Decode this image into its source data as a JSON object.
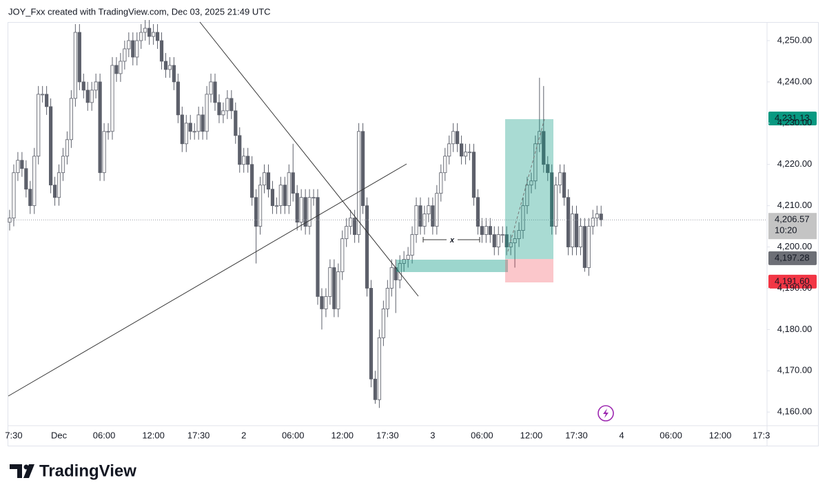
{
  "header": "JOY_Fxx created with TradingView.com, Dec 03, 2025 21:49 UTC",
  "footer": {
    "logo_text": "TradingView"
  },
  "chart_data": {
    "type": "candlestick",
    "up_color": "#f4f4f4",
    "down_color": "#5d606b",
    "wick_color": "#5d606b",
    "categories": [
      null,
      "7:30",
      null,
      null,
      null,
      null,
      null,
      null,
      null,
      null,
      null,
      null,
      "Dec",
      null,
      null,
      null,
      null,
      null,
      null,
      null,
      null,
      null,
      null,
      "06:00",
      null,
      null,
      null,
      null,
      null,
      null,
      null,
      null,
      null,
      null,
      null,
      "12:00",
      null,
      null,
      null,
      null,
      null,
      null,
      null,
      null,
      null,
      null,
      "17:30",
      null,
      null,
      null,
      null,
      null,
      null,
      null,
      null,
      null,
      null,
      "2",
      null,
      null,
      null,
      null,
      null,
      null,
      null,
      null,
      null,
      null,
      null,
      "06:00",
      null,
      null,
      null,
      null,
      null,
      null,
      null,
      null,
      null,
      null,
      null,
      "12:00",
      null,
      null,
      null,
      null,
      null,
      null,
      null,
      null,
      null,
      null,
      "17:30",
      null,
      null,
      null,
      null,
      null,
      null,
      null,
      null,
      null,
      null,
      "3",
      null,
      null,
      null,
      null,
      null,
      null,
      null,
      null,
      null,
      null,
      null,
      "06:00",
      null,
      null,
      null,
      null,
      null,
      null,
      null,
      null,
      null,
      null,
      null,
      "12:00",
      null,
      null,
      null,
      null,
      null,
      null,
      null,
      null,
      null,
      null,
      "17:30",
      null,
      null,
      null,
      null,
      null,
      null,
      null,
      null,
      null,
      null,
      "4",
      null,
      null,
      null,
      null,
      null,
      null,
      null,
      null,
      null,
      null,
      null,
      "06:00",
      null,
      null,
      null,
      null,
      null,
      null,
      null,
      null,
      null,
      null,
      null,
      "12:00",
      null,
      null,
      null,
      null,
      null,
      null,
      null,
      null,
      null,
      "17:3"
    ],
    "open": [
      4206,
      4207,
      4218,
      4221,
      4219,
      4214,
      4210,
      4222,
      4237,
      4237,
      4234,
      4215,
      4212,
      4218,
      4222,
      4226,
      4236,
      4252,
      4240,
      4238,
      4235,
      4238,
      4240,
      4218,
      4228,
      4228,
      4244,
      4242,
      4245,
      4248,
      4250,
      4246,
      4250,
      4252,
      4253,
      4251,
      4252,
      4250,
      4245,
      4243,
      4244,
      4240,
      4232,
      4225,
      4230,
      4228,
      4228,
      4232,
      4228,
      4237,
      4240,
      4235,
      4232,
      4233,
      4236,
      4233,
      4227,
      4220,
      4222,
      4220,
      4212,
      4205,
      4215,
      4218,
      4214,
      4210,
      4210,
      4215,
      4210,
      4218,
      4213,
      4206,
      4212,
      4205,
      4212,
      4212,
      4188,
      4185,
      4188,
      4195,
      4185,
      4194,
      4202,
      4205,
      4207,
      4203,
      4228,
      4210,
      4190,
      4168,
      4163,
      4178,
      4185,
      4190,
      4195,
      4192,
      4196,
      4197,
      4198,
      4203,
      4210,
      4205,
      4208,
      4210,
      4205,
      4213,
      4218,
      4222,
      4225,
      4228,
      4225,
      4222,
      4223,
      4223,
      4212,
      4205,
      4203,
      4205,
      4203,
      4200,
      4203,
      4203,
      4200,
      4201,
      4202,
      4204,
      4210,
      4215,
      4216,
      4225,
      4228,
      4220,
      4218,
      4205,
      4215,
      4218,
      4212,
      4200,
      4208,
      4200,
      4205,
      4195,
      4205,
      4207,
      4208,
      null,
      null,
      null,
      null,
      null,
      null,
      null,
      null,
      null,
      null,
      null,
      null,
      null,
      null,
      null,
      null,
      null,
      null,
      null,
      null,
      null,
      null,
      null,
      null,
      null,
      null,
      null,
      null,
      null,
      null,
      null,
      null,
      null,
      null,
      null,
      null,
      null,
      null,
      null
    ],
    "high": [
      4209,
      4220,
      4223,
      4223,
      4221,
      4216,
      4224,
      4239,
      4239,
      4239,
      4236,
      4217,
      4220,
      4224,
      4228,
      4238,
      4254,
      4254,
      4242,
      4240,
      4240,
      4242,
      4242,
      4230,
      4230,
      4246,
      4246,
      4247,
      4250,
      4252,
      4252,
      4252,
      4254,
      4255,
      4255,
      4254,
      4254,
      4252,
      4247,
      4246,
      4246,
      4242,
      4234,
      4232,
      4232,
      4230,
      4234,
      4234,
      4239,
      4242,
      4242,
      4237,
      4235,
      4238,
      4238,
      4235,
      4229,
      4224,
      4224,
      4222,
      4214,
      4217,
      4220,
      4220,
      4216,
      4212,
      4217,
      4217,
      4220,
      4225,
      4215,
      4214,
      4214,
      4214,
      4214,
      4214,
      4190,
      4190,
      4197,
      4197,
      4196,
      4204,
      4207,
      4209,
      4209,
      4230,
      4230,
      4212,
      4192,
      4170,
      4180,
      4187,
      4192,
      4197,
      4197,
      4198,
      4199,
      4200,
      4205,
      4212,
      4212,
      4210,
      4212,
      4212,
      4215,
      4220,
      4224,
      4227,
      4230,
      4230,
      4227,
      4225,
      4225,
      4225,
      4214,
      4207,
      4207,
      4207,
      4205,
      4205,
      4205,
      4205,
      4203,
      4204,
      4206,
      4212,
      4217,
      4218,
      4227,
      4241,
      4239,
      4222,
      4220,
      4217,
      4220,
      4220,
      4214,
      4210,
      4210,
      4207,
      4207,
      4207,
      4209,
      4210,
      4210,
      null,
      null,
      null,
      null,
      null,
      null,
      null,
      null,
      null,
      null,
      null,
      null,
      null,
      null,
      null,
      null,
      null,
      null,
      null,
      null,
      null,
      null,
      null,
      null,
      null,
      null,
      null,
      null,
      null,
      null,
      null,
      null,
      null,
      null,
      null,
      null,
      null,
      null,
      null
    ],
    "low": [
      4204,
      4205,
      4216,
      4217,
      4212,
      4208,
      4208,
      4220,
      4235,
      4232,
      4213,
      4210,
      4210,
      4216,
      4220,
      4224,
      4234,
      4238,
      4236,
      4233,
      4233,
      4236,
      4216,
      4216,
      4226,
      4226,
      4240,
      4240,
      4243,
      4246,
      4244,
      4244,
      4248,
      4250,
      4249,
      4249,
      4248,
      4243,
      4241,
      4241,
      4238,
      4230,
      4223,
      4223,
      4226,
      4226,
      4226,
      4226,
      4226,
      4235,
      4233,
      4230,
      4230,
      4231,
      4231,
      4225,
      4218,
      4218,
      4218,
      4210,
      4196,
      4203,
      4213,
      4212,
      4208,
      4208,
      4208,
      4208,
      4208,
      4211,
      4204,
      4204,
      4203,
      4203,
      4210,
      4186,
      4180,
      4183,
      4186,
      4183,
      4183,
      4192,
      4200,
      4203,
      4201,
      4201,
      4208,
      4188,
      4166,
      4162,
      4161,
      4176,
      4183,
      4188,
      4184,
      4190,
      4194,
      4195,
      4196,
      4201,
      4203,
      4203,
      4206,
      4203,
      4203,
      4211,
      4216,
      4220,
      4223,
      4223,
      4220,
      4220,
      4221,
      4210,
      4203,
      4201,
      4201,
      4201,
      4198,
      4198,
      4201,
      4198,
      4198,
      4195,
      4200,
      4202,
      4208,
      4213,
      4214,
      4223,
      4218,
      4216,
      4203,
      4203,
      4213,
      4210,
      4198,
      4198,
      4198,
      4198,
      4194,
      4193,
      4203,
      4205,
      4205,
      null,
      null,
      null,
      null,
      null,
      null,
      null,
      null,
      null,
      null,
      null,
      null,
      null,
      null,
      null,
      null,
      null,
      null,
      null,
      null,
      null,
      null,
      null,
      null,
      null,
      null,
      null,
      null,
      null,
      null,
      null,
      null,
      null,
      null,
      null,
      null,
      null,
      null,
      null
    ],
    "close": [
      4207,
      4218,
      4221,
      4219,
      4214,
      4210,
      4222,
      4237,
      4237,
      4234,
      4215,
      4212,
      4218,
      4222,
      4226,
      4236,
      4252,
      4240,
      4238,
      4235,
      4238,
      4240,
      4218,
      4228,
      4228,
      4244,
      4242,
      4245,
      4248,
      4250,
      4246,
      4250,
      4252,
      4253,
      4251,
      4252,
      4250,
      4245,
      4243,
      4244,
      4240,
      4232,
      4225,
      4230,
      4228,
      4228,
      4232,
      4228,
      4237,
      4240,
      4235,
      4232,
      4233,
      4236,
      4233,
      4227,
      4220,
      4222,
      4220,
      4212,
      4205,
      4215,
      4218,
      4214,
      4210,
      4210,
      4215,
      4210,
      4218,
      4213,
      4206,
      4212,
      4205,
      4212,
      4212,
      4188,
      4185,
      4188,
      4195,
      4185,
      4194,
      4202,
      4205,
      4207,
      4203,
      4228,
      4210,
      4190,
      4168,
      4163,
      4178,
      4185,
      4190,
      4195,
      4192,
      4196,
      4197,
      4198,
      4203,
      4210,
      4205,
      4208,
      4210,
      4205,
      4213,
      4218,
      4222,
      4225,
      4228,
      4225,
      4222,
      4223,
      4223,
      4212,
      4205,
      4203,
      4205,
      4203,
      4200,
      4203,
      4203,
      4200,
      4201,
      4202,
      4204,
      4210,
      4215,
      4216,
      4225,
      4228,
      4220,
      4218,
      4205,
      4215,
      4218,
      4212,
      4200,
      4208,
      4200,
      4205,
      4195,
      4205,
      4207,
      4208,
      4206.57,
      null,
      null,
      null,
      null,
      null,
      null,
      null,
      null,
      null,
      null,
      null,
      null,
      null,
      null,
      null,
      null,
      null,
      null,
      null,
      null,
      null,
      null,
      null,
      null,
      null,
      null,
      null,
      null,
      null,
      null,
      null,
      null,
      null,
      null,
      null,
      null,
      null,
      null,
      null
    ],
    "ylim": [
      4156.7,
      4254.5
    ],
    "yticks": [
      {
        "value": 4160,
        "label": "4,160.00"
      },
      {
        "value": 4170,
        "label": "4,170.00"
      },
      {
        "value": 4180,
        "label": "4,180.00"
      },
      {
        "value": 4190,
        "label": "4,190.00"
      },
      {
        "value": 4200,
        "label": "4,200.00"
      },
      {
        "value": 4210,
        "label": "4,210.00"
      },
      {
        "value": 4220,
        "label": "4,220.00"
      },
      {
        "value": 4230,
        "label": "4,230.00"
      },
      {
        "value": 4240,
        "label": "4,240.00"
      },
      {
        "value": 4250,
        "label": "4,250.00"
      }
    ],
    "price_labels": [
      {
        "value": 4231.13,
        "label": "4,231.13",
        "color": "#089981",
        "text_color": "#ffffff"
      },
      {
        "value": 4206.57,
        "label": "4,206.57",
        "countdown": "10:20",
        "color": "#c4c4c4",
        "text_color": "#131722"
      },
      {
        "value": 4197.28,
        "label": "4,197.28",
        "color": "#6d6f76",
        "text_color": "#ffffff"
      },
      {
        "value": 4191.6,
        "label": "4,191.60",
        "color": "#f23645",
        "text_color": "#ffffff"
      }
    ],
    "annotation": "x"
  }
}
